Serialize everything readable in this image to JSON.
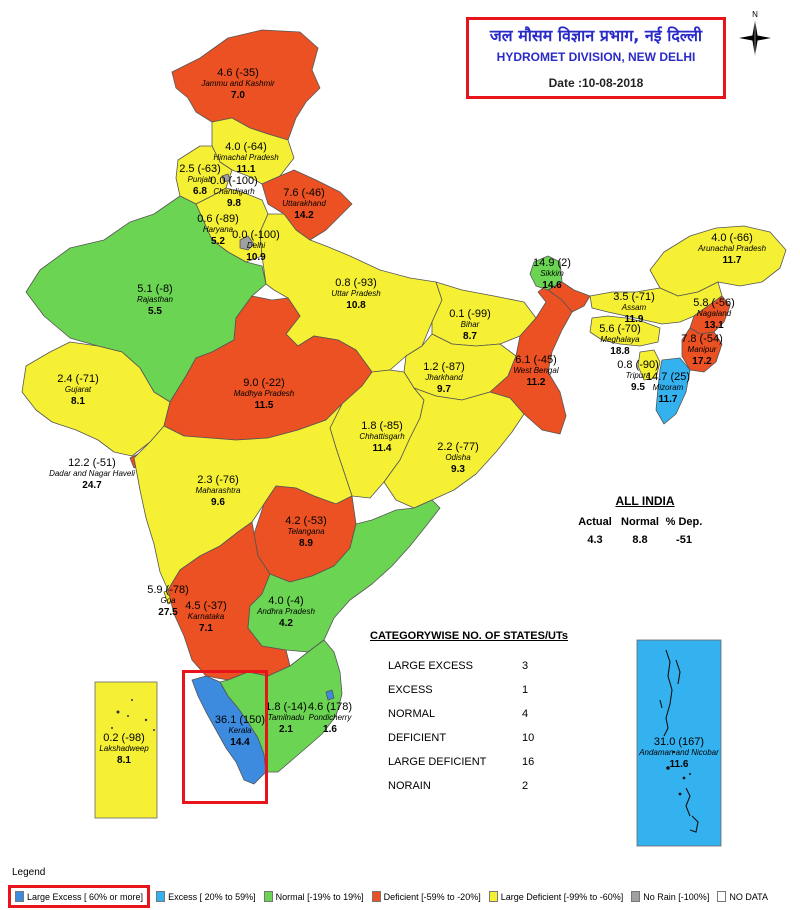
{
  "header": {
    "title_hindi": "जल मौसम विज्ञान प्रभाग, नई दिल्ली",
    "title_english": "HYDROMET DIVISION, NEW DELHI",
    "date": "Date :10-08-2018"
  },
  "compass": {
    "north": "N"
  },
  "colors": {
    "large_excess": "#3d8bdf",
    "excess": "#33b2ef",
    "normal": "#6bd453",
    "deficient": "#eb5122",
    "large_deficient": "#f5f033",
    "no_rain": "#a0a0a0",
    "no_data": "#ffffff"
  },
  "states": {
    "jk": {
      "value": "4.6 (-35)",
      "name": "Jammu and Kashmir",
      "normal": "7.0",
      "category": "deficient"
    },
    "hp": {
      "value": "4.0 (-64)",
      "name": "Himachal Pradesh",
      "normal": "11.1",
      "category": "large_deficient"
    },
    "pb": {
      "value": "2.5 (-63)",
      "name": "Punjab",
      "normal": "6.8",
      "category": "large_deficient"
    },
    "ch": {
      "value": "0.0 (-100)",
      "name": "Chandigarh",
      "normal": "9.8",
      "category": "no_rain"
    },
    "uk": {
      "value": "7.6 (-46)",
      "name": "Uttarakhand",
      "normal": "14.2",
      "category": "deficient"
    },
    "hr": {
      "value": "0.6 (-89)",
      "name": "Haryana",
      "normal": "5.2",
      "category": "large_deficient"
    },
    "dl": {
      "value": "0.0 (-100)",
      "name": "Delhi",
      "normal": "10.9",
      "category": "no_rain"
    },
    "rj": {
      "value": "5.1 (-8)",
      "name": "Rajasthan",
      "normal": "5.5",
      "category": "normal"
    },
    "up": {
      "value": "0.8 (-93)",
      "name": "Uttar Pradesh",
      "normal": "10.8",
      "category": "large_deficient"
    },
    "sk": {
      "value": "14.9 (2)",
      "name": "Sikkim",
      "normal": "14.6",
      "category": "normal"
    },
    "ar": {
      "value": "4.0 (-66)",
      "name": "Arunachal Pradesh",
      "normal": "11.7",
      "category": "large_deficient"
    },
    "br": {
      "value": "0.1 (-99)",
      "name": "Bihar",
      "normal": "8.7",
      "category": "large_deficient"
    },
    "as": {
      "value": "3.5 (-71)",
      "name": "Assam",
      "normal": "11.9",
      "category": "large_deficient"
    },
    "nl": {
      "value": "5.8 (-56)",
      "name": "Nagaland",
      "normal": "13.1",
      "category": "deficient"
    },
    "ml": {
      "value": "5.6 (-70)",
      "name": "Meghalaya",
      "normal": "18.8",
      "category": "large_deficient"
    },
    "mn": {
      "value": "7.8 (-54)",
      "name": "Manipur",
      "normal": "17.2",
      "category": "deficient"
    },
    "wb": {
      "value": "6.1 (-45)",
      "name": "West Bengal",
      "normal": "11.2",
      "category": "deficient"
    },
    "tr": {
      "value": "0.8 (-90)",
      "name": "Tripura",
      "normal": "9.5",
      "category": "large_deficient"
    },
    "mz": {
      "value": "14.7 (25)",
      "name": "Mizoram",
      "normal": "11.7",
      "category": "excess"
    },
    "gj": {
      "value": "2.4 (-71)",
      "name": "Gujarat",
      "normal": "8.1",
      "category": "large_deficient"
    },
    "mp": {
      "value": "9.0 (-22)",
      "name": "Madhya Pradesh",
      "normal": "11.5",
      "category": "deficient"
    },
    "jh": {
      "value": "1.2 (-87)",
      "name": "Jharkhand",
      "normal": "9.7",
      "category": "large_deficient"
    },
    "cg": {
      "value": "1.8 (-85)",
      "name": "Chhattisgarh",
      "normal": "11.4",
      "category": "large_deficient"
    },
    "od": {
      "value": "2.2 (-77)",
      "name": "Odisha",
      "normal": "9.3",
      "category": "large_deficient"
    },
    "dn": {
      "value": "12.2 (-51)",
      "name": "Dadar and Nagar Haveli",
      "normal": "24.7",
      "category": "deficient"
    },
    "mh": {
      "value": "2.3 (-76)",
      "name": "Maharashtra",
      "normal": "9.6",
      "category": "large_deficient"
    },
    "tg": {
      "value": "4.2 (-53)",
      "name": "Telangana",
      "normal": "8.9",
      "category": "deficient"
    },
    "ga": {
      "value": "5.9 (-78)",
      "name": "Goa",
      "normal": "27.5",
      "category": "large_deficient"
    },
    "ka": {
      "value": "4.5 (-37)",
      "name": "Karnataka",
      "normal": "7.1",
      "category": "deficient"
    },
    "ap": {
      "value": "4.0 (-4)",
      "name": "Andhra Pradesh",
      "normal": "4.2",
      "category": "normal"
    },
    "kl": {
      "value": "36.1 (150)",
      "name": "Kerala",
      "normal": "14.4",
      "category": "large_excess"
    },
    "tn": {
      "value": "1.8 (-14)",
      "name": "Tamilnadu",
      "normal": "2.1",
      "category": "normal"
    },
    "py": {
      "value": "4.6 (178)",
      "name": "Pondicherry",
      "normal": "1.6",
      "category": "large_excess"
    },
    "ld": {
      "value": "0.2 (-98)",
      "name": "Lakshadweep",
      "normal": "8.1",
      "category": "large_deficient"
    },
    "an": {
      "value": "31.0 (167)",
      "name": "Andaman and Nicobar",
      "normal": "11.6",
      "category": "large_excess"
    }
  },
  "all_india": {
    "heading": "ALL INDIA",
    "actual_label": "Actual",
    "normal_label": "Normal",
    "dep_label": "% Dep.",
    "actual": "4.3",
    "normal": "8.8",
    "dep": "-51"
  },
  "categories": {
    "heading": "CATEGORYWISE NO. OF STATES/UTs",
    "rows": [
      {
        "label": "LARGE EXCESS",
        "count": "3"
      },
      {
        "label": "EXCESS",
        "count": "1"
      },
      {
        "label": "NORMAL",
        "count": "4"
      },
      {
        "label": "DEFICIENT",
        "count": "10"
      },
      {
        "label": "LARGE DEFICIENT",
        "count": "16"
      },
      {
        "label": "NORAIN",
        "count": "2"
      }
    ]
  },
  "legend": {
    "heading": "Legend",
    "items": [
      {
        "label": "Large Excess [ 60% or more]",
        "color": "#3d8bdf"
      },
      {
        "label": "Excess [ 20% to 59%]",
        "color": "#33b2ef"
      },
      {
        "label": "Normal [-19% to 19%]",
        "color": "#6bd453"
      },
      {
        "label": "Deficient [-59% to -20%]",
        "color": "#eb5122"
      },
      {
        "label": "Large Deficient [-99% to -60%]",
        "color": "#f5f033"
      },
      {
        "label": "No Rain [-100%]",
        "color": "#a0a0a0"
      },
      {
        "label": "NO DATA",
        "color": "#ffffff"
      }
    ]
  }
}
